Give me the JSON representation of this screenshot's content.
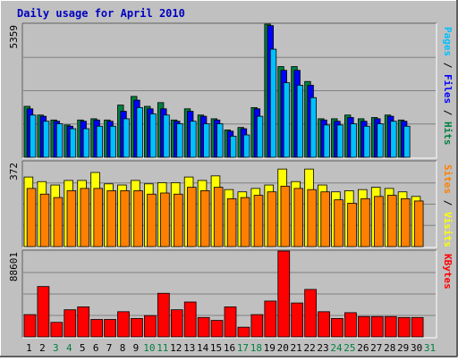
{
  "title": "Daily usage for April 2010",
  "colors": {
    "background": "#c0c0c0",
    "frame_light": "#ffffff",
    "frame_dark": "#606060",
    "title": "#0000c0",
    "hits": "#008040",
    "files": "#0000ff",
    "pages": "#00c0ff",
    "visits": "#ffff00",
    "sites": "#ff8000",
    "kbytes": "#ff0000",
    "weekend_day": "#008040",
    "weekday_day": "#000000"
  },
  "chart_data": [
    {
      "type": "bar",
      "panel": "hits-files-pages",
      "ymax_label": "5359",
      "ylim": [
        0,
        5359
      ],
      "right_label": [
        {
          "text": "Pages",
          "color": "#00c0ff"
        },
        {
          "text": " / ",
          "color": "#000000"
        },
        {
          "text": "Files",
          "color": "#0000ff"
        },
        {
          "text": " / ",
          "color": "#000000"
        },
        {
          "text": "Hits",
          "color": "#008040"
        }
      ],
      "categories": [
        "1",
        "2",
        "3",
        "4",
        "5",
        "6",
        "7",
        "8",
        "9",
        "10",
        "11",
        "12",
        "13",
        "14",
        "15",
        "16",
        "17",
        "18",
        "19",
        "20",
        "21",
        "22",
        "23",
        "24",
        "25",
        "26",
        "27",
        "28",
        "29",
        "30",
        "31"
      ],
      "series": [
        {
          "name": "Hits",
          "values": [
            2050,
            1700,
            1500,
            1300,
            1500,
            1550,
            1500,
            2100,
            2450,
            2050,
            2200,
            1500,
            1950,
            1700,
            1550,
            1100,
            1200,
            2000,
            5359,
            3650,
            3650,
            3050,
            1550,
            1550,
            1700,
            1550,
            1600,
            1700,
            1500,
            null,
            null
          ]
        },
        {
          "name": "Files",
          "values": [
            1950,
            1650,
            1450,
            1250,
            1450,
            1500,
            1450,
            1850,
            2300,
            1950,
            1950,
            1450,
            1850,
            1650,
            1500,
            1050,
            1150,
            1950,
            5300,
            3500,
            3500,
            2900,
            1500,
            1450,
            1600,
            1450,
            1550,
            1650,
            1450,
            null,
            null
          ]
        },
        {
          "name": "Pages",
          "values": [
            1700,
            1450,
            1350,
            1150,
            1150,
            1250,
            1250,
            1550,
            2000,
            1750,
            1700,
            1350,
            1450,
            1350,
            1350,
            850,
            900,
            1650,
            4350,
            3000,
            2900,
            2400,
            1300,
            1300,
            1350,
            1250,
            1350,
            1450,
            1250,
            null,
            null
          ]
        }
      ]
    },
    {
      "type": "bar",
      "panel": "visits-sites",
      "ymax_label": "372",
      "ylim": [
        0,
        372
      ],
      "right_label": [
        {
          "text": "Sites",
          "color": "#ff8000"
        },
        {
          "text": " / ",
          "color": "#000000"
        },
        {
          "text": "Visits",
          "color": "#ffff00"
        }
      ],
      "categories": [
        "1",
        "2",
        "3",
        "4",
        "5",
        "6",
        "7",
        "8",
        "9",
        "10",
        "11",
        "12",
        "13",
        "14",
        "15",
        "16",
        "17",
        "18",
        "19",
        "20",
        "21",
        "22",
        "23",
        "24",
        "25",
        "26",
        "27",
        "28",
        "29",
        "30",
        "31"
      ],
      "series": [
        {
          "name": "Visits",
          "values": [
            305,
            285,
            270,
            290,
            290,
            325,
            275,
            270,
            290,
            275,
            280,
            280,
            305,
            290,
            310,
            250,
            240,
            255,
            270,
            340,
            285,
            340,
            270,
            240,
            245,
            250,
            260,
            255,
            240,
            220,
            null
          ]
        },
        {
          "name": "Sites",
          "values": [
            255,
            230,
            215,
            245,
            255,
            255,
            245,
            245,
            245,
            230,
            235,
            230,
            260,
            245,
            260,
            210,
            215,
            225,
            240,
            265,
            255,
            250,
            240,
            205,
            190,
            210,
            220,
            225,
            210,
            200,
            null
          ]
        }
      ]
    },
    {
      "type": "bar",
      "panel": "kbytes",
      "ymax_label": "88601",
      "ylim": [
        0,
        88601
      ],
      "right_label": [
        {
          "text": "KBytes",
          "color": "#ff0000"
        }
      ],
      "categories": [
        "1",
        "2",
        "3",
        "4",
        "5",
        "6",
        "7",
        "8",
        "9",
        "10",
        "11",
        "12",
        "13",
        "14",
        "15",
        "16",
        "17",
        "18",
        "19",
        "20",
        "21",
        "22",
        "23",
        "24",
        "25",
        "26",
        "27",
        "28",
        "29",
        "30",
        "31"
      ],
      "series": [
        {
          "name": "KBytes",
          "values": [
            23000,
            52000,
            15000,
            28000,
            31000,
            18000,
            18000,
            26000,
            19000,
            22000,
            45000,
            28000,
            36000,
            20000,
            17000,
            31000,
            10000,
            23000,
            37000,
            88601,
            35000,
            49000,
            26000,
            19000,
            25000,
            21000,
            21000,
            21000,
            20000,
            20000,
            null
          ]
        }
      ]
    }
  ],
  "days": [
    {
      "label": "1",
      "weekend": false
    },
    {
      "label": "2",
      "weekend": false
    },
    {
      "label": "3",
      "weekend": true
    },
    {
      "label": "4",
      "weekend": true
    },
    {
      "label": "5",
      "weekend": false
    },
    {
      "label": "6",
      "weekend": false
    },
    {
      "label": "7",
      "weekend": false
    },
    {
      "label": "8",
      "weekend": false
    },
    {
      "label": "9",
      "weekend": false
    },
    {
      "label": "10",
      "weekend": true
    },
    {
      "label": "11",
      "weekend": true
    },
    {
      "label": "12",
      "weekend": false
    },
    {
      "label": "13",
      "weekend": false
    },
    {
      "label": "14",
      "weekend": false
    },
    {
      "label": "15",
      "weekend": false
    },
    {
      "label": "16",
      "weekend": false
    },
    {
      "label": "17",
      "weekend": true
    },
    {
      "label": "18",
      "weekend": true
    },
    {
      "label": "19",
      "weekend": false
    },
    {
      "label": "20",
      "weekend": false
    },
    {
      "label": "21",
      "weekend": false
    },
    {
      "label": "22",
      "weekend": false
    },
    {
      "label": "23",
      "weekend": false
    },
    {
      "label": "24",
      "weekend": true
    },
    {
      "label": "25",
      "weekend": true
    },
    {
      "label": "26",
      "weekend": false
    },
    {
      "label": "27",
      "weekend": false
    },
    {
      "label": "28",
      "weekend": false
    },
    {
      "label": "29",
      "weekend": false
    },
    {
      "label": "30",
      "weekend": false
    },
    {
      "label": "31",
      "weekend": true
    }
  ]
}
